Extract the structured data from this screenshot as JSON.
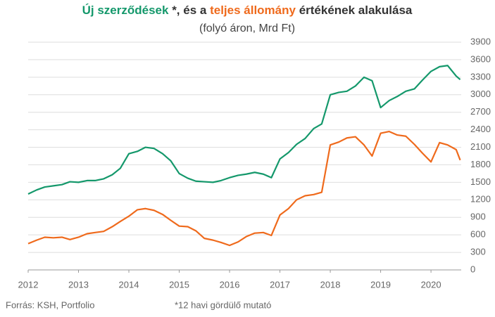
{
  "chart_data": {
    "type": "line",
    "title_parts": [
      {
        "text": "Új szerződések",
        "color": "#14986b"
      },
      {
        "text": " *, és a ",
        "color": "#333333"
      },
      {
        "text": "teljes állomány",
        "color": "#ef6a1c"
      },
      {
        "text": " értékének alakulása",
        "color": "#333333"
      }
    ],
    "subtitle": "(folyó áron, Mrd Ft)",
    "source": "Forrás: KSH, Portfolio",
    "note": "*12 havi gördülő mutató",
    "x": [
      2012.0,
      2012.17,
      2012.33,
      2012.5,
      2012.67,
      2012.83,
      2013.0,
      2013.17,
      2013.33,
      2013.5,
      2013.67,
      2013.83,
      2014.0,
      2014.17,
      2014.33,
      2014.5,
      2014.67,
      2014.83,
      2015.0,
      2015.17,
      2015.33,
      2015.5,
      2015.67,
      2015.83,
      2016.0,
      2016.17,
      2016.33,
      2016.5,
      2016.67,
      2016.83,
      2017.0,
      2017.17,
      2017.33,
      2017.5,
      2017.67,
      2017.83,
      2018.0,
      2018.17,
      2018.33,
      2018.5,
      2018.67,
      2018.83,
      2019.0,
      2019.17,
      2019.33,
      2019.5,
      2019.67,
      2019.83,
      2020.0,
      2020.17,
      2020.33,
      2020.5,
      2020.58
    ],
    "series": [
      {
        "name": "Új szerződések",
        "color": "#14986b",
        "values": [
          1300,
          1370,
          1420,
          1440,
          1460,
          1510,
          1500,
          1530,
          1530,
          1560,
          1630,
          1740,
          1990,
          2030,
          2100,
          2080,
          1990,
          1870,
          1650,
          1570,
          1520,
          1510,
          1500,
          1530,
          1580,
          1620,
          1640,
          1670,
          1640,
          1580,
          1900,
          2010,
          2150,
          2250,
          2420,
          2500,
          3000,
          3040,
          3060,
          3150,
          3300,
          3240,
          2780,
          2900,
          2970,
          3060,
          3100,
          3250,
          3400,
          3480,
          3500,
          3320,
          3260
        ]
      },
      {
        "name": "teljes állomány",
        "color": "#ef6a1c",
        "values": [
          450,
          510,
          560,
          550,
          560,
          520,
          560,
          620,
          640,
          660,
          740,
          830,
          920,
          1030,
          1050,
          1020,
          950,
          850,
          750,
          740,
          670,
          540,
          510,
          470,
          420,
          480,
          570,
          630,
          640,
          590,
          940,
          1050,
          1200,
          1270,
          1290,
          1330,
          2140,
          2190,
          2260,
          2280,
          2140,
          1950,
          2340,
          2370,
          2310,
          2290,
          2150,
          2000,
          1850,
          2180,
          2140,
          2060,
          1880
        ]
      }
    ],
    "xlim": [
      2012,
      2020.6
    ],
    "xticks": [
      2012,
      2013,
      2014,
      2015,
      2016,
      2017,
      2018,
      2019,
      2020
    ],
    "ylim": [
      0,
      3900
    ],
    "yticks": [
      0,
      300,
      600,
      900,
      1200,
      1500,
      1800,
      2100,
      2400,
      2700,
      3000,
      3300,
      3600,
      3900
    ],
    "grid": true
  }
}
